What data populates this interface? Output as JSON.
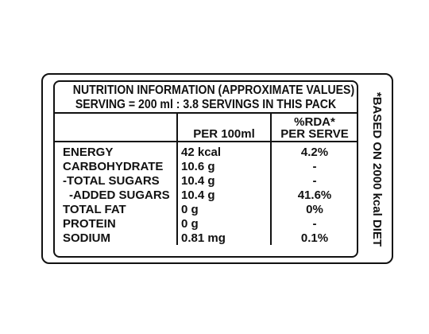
{
  "header": {
    "line1": "NUTRITION INFORMATION (APPROXIMATE VALUES)",
    "line2": "SERVING = 200 ml : 3.8 SERVINGS IN THIS PACK"
  },
  "columns": {
    "per100": "PER 100ml",
    "rda_line1": "%RDA*",
    "rda_line2": "PER SERVE"
  },
  "rows": [
    {
      "name": "ENERGY",
      "value": "42 kcal",
      "rda": "4.2%"
    },
    {
      "name": "CARBOHYDRATE",
      "value": "10.6 g",
      "rda": "-"
    },
    {
      "name": "-TOTAL SUGARS",
      "value": "10.4 g",
      "rda": "-"
    },
    {
      "name": "-ADDED SUGARS",
      "value": "10.4 g",
      "rda": "41.6%"
    },
    {
      "name": "TOTAL FAT",
      "value": "0 g",
      "rda": "0%"
    },
    {
      "name": "PROTEIN",
      "value": "0 g",
      "rda": "-"
    },
    {
      "name": "SODIUM",
      "value": "0.81 mg",
      "rda": "0.1%"
    }
  ],
  "footnote": "*BASED ON 2000 kcal DIET"
}
